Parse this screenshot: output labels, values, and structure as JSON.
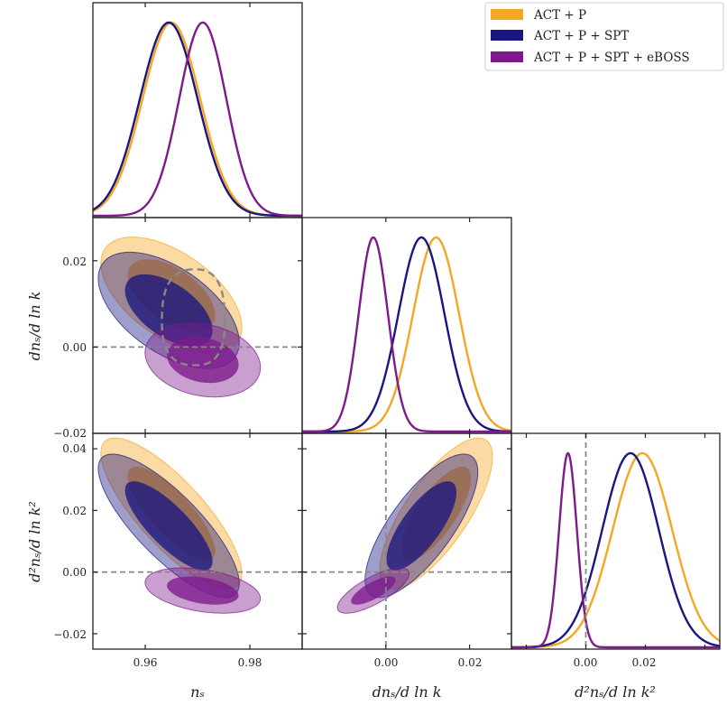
{
  "chart_data": {
    "type": "triangle-corner",
    "title": "",
    "parameters": [
      {
        "key": "ns",
        "label": "n_s",
        "range": [
          0.95,
          0.99
        ],
        "ticks": [
          0.96,
          0.98
        ],
        "tick_labels": [
          "0.96",
          "0.98"
        ]
      },
      {
        "key": "dns",
        "label": "dn_s/d ln k",
        "range": [
          -0.02,
          0.03
        ],
        "ticks": [
          -0.02,
          0.0,
          0.02
        ],
        "tick_labels": [
          "−0.02",
          "0.00",
          "0.02"
        ]
      },
      {
        "key": "d2ns",
        "label": "d²n_s/d ln k²",
        "range": [
          -0.025,
          0.045
        ],
        "ticks": [
          -0.02,
          0.0,
          0.02,
          0.04
        ],
        "tick_labels": [
          "−0.02",
          "0.00",
          "0.02",
          "0.04"
        ]
      }
    ],
    "axis_labels": {
      "x": [
        "nₛ",
        "dnₛ/d ln k",
        "d²nₛ/d ln k²"
      ],
      "y": [
        "dnₛ/d ln k",
        "d²nₛ/d ln k²"
      ]
    },
    "x_tick_labels": {
      "ns": [
        "0.96",
        "0.98"
      ],
      "dns": [
        "0.00",
        "0.02"
      ],
      "d2ns": [
        "0.00",
        "0.02"
      ]
    },
    "y_tick_labels": {
      "dns": [
        "0.02",
        "0.00",
        "−0.02"
      ],
      "d2ns": [
        "0.04",
        "0.02",
        "0.00",
        "−0.02"
      ]
    },
    "legend": {
      "placement": "top-right",
      "entries": [
        "ACT + P",
        "ACT + P + SPT",
        "ACT + P + SPT + eBOSS"
      ]
    },
    "series": [
      {
        "name": "ACT + P",
        "color": "#f5a623",
        "mean": {
          "ns": 0.965,
          "dns": 0.012,
          "d2ns": 0.019
        },
        "sigma": {
          "ns": 0.0055,
          "dns": 0.0055,
          "d2ns": 0.01
        },
        "corr": {
          "ns_dns": -0.55,
          "ns_d2ns": -0.8,
          "dns_d2ns": 0.75
        }
      },
      {
        "name": "ACT + P + SPT",
        "color": "#1a1680",
        "mean": {
          "ns": 0.9645,
          "dns": 0.0085,
          "d2ns": 0.015
        },
        "sigma": {
          "ns": 0.0055,
          "dns": 0.0055,
          "d2ns": 0.0095
        },
        "corr": {
          "ns_dns": -0.55,
          "ns_d2ns": -0.8,
          "dns_d2ns": 0.75
        }
      },
      {
        "name": "ACT + P + SPT + eBOSS",
        "color": "#7e1a8c",
        "mean": {
          "ns": 0.971,
          "dns": -0.003,
          "d2ns": -0.006
        },
        "sigma": {
          "ns": 0.0045,
          "dns": 0.0035,
          "d2ns": 0.003
        },
        "corr": {
          "ns_dns": -0.2,
          "ns_d2ns": -0.35,
          "dns_d2ns": 0.75
        }
      }
    ],
    "reference_lines": {
      "dns": 0.0,
      "d2ns": 0.0,
      "color": "#888888",
      "style": "dashed"
    },
    "extra_contour": {
      "name": "dashed-reference-contour",
      "panel": "ns-vs-dns",
      "color": "#888888",
      "style": "dashed",
      "center": {
        "ns": 0.9695,
        "dns": 0.006
      },
      "half_width": {
        "ns": 0.006,
        "dns": 0.012
      }
    }
  }
}
